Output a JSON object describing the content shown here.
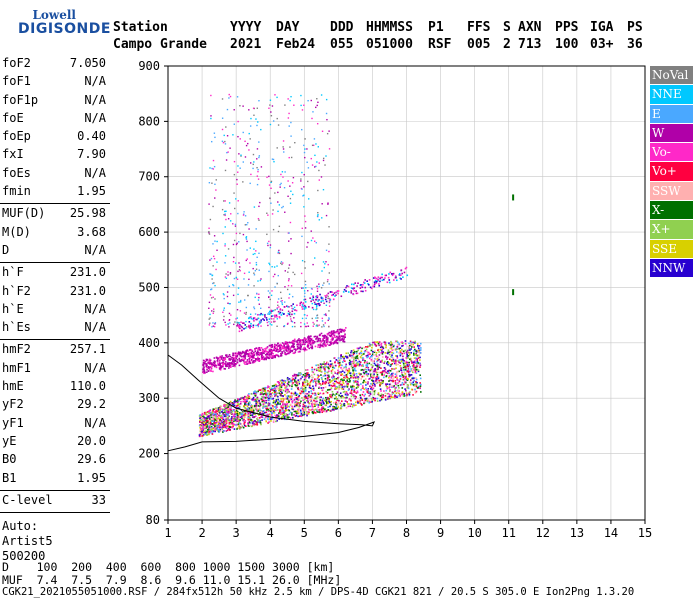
{
  "logo": {
    "top": "Lowell",
    "bottom": "DIGISONDE"
  },
  "header": {
    "labels": [
      "Station",
      "YYYY",
      "DAY",
      "DDD",
      "HHMMSS",
      "P1",
      "FFS",
      "S",
      "AXN",
      "PPS",
      "IGA",
      "PS"
    ],
    "values": [
      "Campo Grande",
      "2021",
      "Feb24",
      "055",
      "051000",
      "RSF",
      "005",
      "2",
      "713",
      "100",
      "03+",
      "36"
    ]
  },
  "params": {
    "group1": [
      {
        "k": "foF2",
        "v": "7.050"
      },
      {
        "k": "foF1",
        "v": "N/A"
      },
      {
        "k": "foF1p",
        "v": "N/A"
      },
      {
        "k": "foE",
        "v": "N/A"
      },
      {
        "k": "foEp",
        "v": "0.40"
      },
      {
        "k": "fxI",
        "v": "7.90"
      },
      {
        "k": "foEs",
        "v": "N/A"
      },
      {
        "k": "fmin",
        "v": "1.95"
      }
    ],
    "group2": [
      {
        "k": "MUF(D)",
        "v": "25.98"
      },
      {
        "k": "M(D)",
        "v": "3.68"
      },
      {
        "k": "D",
        "v": "N/A"
      }
    ],
    "group3": [
      {
        "k": "h`F",
        "v": "231.0"
      },
      {
        "k": "h`F2",
        "v": "231.0"
      },
      {
        "k": "h`E",
        "v": "N/A"
      },
      {
        "k": "h`Es",
        "v": "N/A"
      }
    ],
    "group4": [
      {
        "k": "hmF2",
        "v": "257.1"
      },
      {
        "k": "hmF1",
        "v": "N/A"
      },
      {
        "k": "hmE",
        "v": "110.0"
      },
      {
        "k": "yF2",
        "v": "29.2"
      },
      {
        "k": "yF1",
        "v": "N/A"
      },
      {
        "k": "yE",
        "v": "20.0"
      },
      {
        "k": "B0",
        "v": "29.6"
      },
      {
        "k": "B1",
        "v": "1.95"
      }
    ],
    "group5": [
      {
        "k": "C-level",
        "v": "33"
      }
    ],
    "auto": [
      "Auto:",
      "Artist5",
      "500200"
    ]
  },
  "legend": [
    {
      "label": "NoVal",
      "color": "#808080"
    },
    {
      "label": "NNE",
      "color": "#00c8ff"
    },
    {
      "label": "E",
      "color": "#4aa8ff"
    },
    {
      "label": "W",
      "color": "#b000a8"
    },
    {
      "label": "Vo-",
      "color": "#ff28c8"
    },
    {
      "label": "Vo+",
      "color": "#ff0040"
    },
    {
      "label": "SSW",
      "color": "#ffb0b0"
    },
    {
      "label": "X-",
      "color": "#007000"
    },
    {
      "label": "X+",
      "color": "#90d050"
    },
    {
      "label": "SSE",
      "color": "#d8d000"
    },
    {
      "label": "NNW",
      "color": "#2800d0"
    }
  ],
  "footer": {
    "d_line": "D    100  200  400  600  800 1000 1500 3000 [km]",
    "muf_line": "MUF  7.4  7.5  7.9  8.6  9.6 11.0 15.1 26.0 [MHz]",
    "file_line": "CGK21_2021055051000.RSF / 284fx512h 50 kHz 2.5 km / DPS-4D CGK21 821 / 20.5 S 305.0 E Ion2Png 1.3.20"
  },
  "chart_data": {
    "type": "scatter",
    "title": "",
    "xlabel": "",
    "ylabel": "",
    "xlim": [
      1,
      15
    ],
    "ylim": [
      80,
      900
    ],
    "xticks": [
      1,
      2,
      3,
      4,
      5,
      6,
      7,
      8,
      9,
      10,
      11,
      12,
      13,
      14,
      15
    ],
    "yticks": [
      80,
      200,
      300,
      400,
      500,
      600,
      700,
      800,
      900
    ],
    "grid": true,
    "profile_curve": {
      "name": "",
      "x": [
        1.0,
        1.4,
        1.9,
        2.5,
        3.0,
        4.0,
        5.0,
        6.0,
        6.7,
        7.0,
        7.05,
        6.6,
        6.0,
        5.0,
        4.0,
        3.0,
        2.0,
        1.5,
        1.0
      ],
      "y": [
        378,
        360,
        332,
        300,
        282,
        266,
        258,
        254,
        252,
        250,
        257,
        247,
        238,
        231,
        226,
        222,
        221,
        212,
        205
      ]
    },
    "traces": [
      {
        "name": "F-layer o-trace",
        "x_range": [
          1.9,
          8.4
        ],
        "h_range": [
          230,
          410
        ]
      },
      {
        "name": "F-layer upper band",
        "x_range": [
          2.0,
          6.2
        ],
        "h_range": [
          330,
          430
        ]
      },
      {
        "name": "multiple echoes",
        "x_range": [
          2.2,
          8.0
        ],
        "h_range": [
          430,
          900
        ]
      },
      {
        "name": "isolated echoes",
        "x": [
          11.1,
          11.1
        ],
        "y": [
          668,
          497
        ]
      }
    ]
  }
}
